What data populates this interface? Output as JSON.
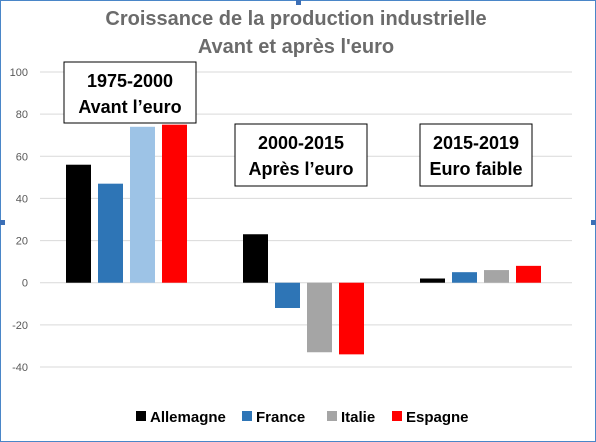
{
  "chart_data": {
    "type": "bar",
    "title": [
      "Croissance de la production industrielle",
      "Avant et après l'euro"
    ],
    "categories": [
      [
        "1975-2000",
        "Avant l’euro"
      ],
      [
        "2000-2015",
        "Après l’euro"
      ],
      [
        "2015-2019",
        "Euro faible"
      ]
    ],
    "series": [
      {
        "name": "Allemagne",
        "color": "#000000",
        "values": [
          56,
          23,
          2
        ]
      },
      {
        "name": "France",
        "color": "#2e75b6",
        "values": [
          47,
          -12,
          5
        ]
      },
      {
        "name": "Italie",
        "color_first": "#9dc3e6",
        "color": "#a5a5a5",
        "values": [
          74,
          -33,
          6
        ]
      },
      {
        "name": "Espagne",
        "color": "#ff0000",
        "values": [
          75,
          -34,
          8
        ]
      }
    ],
    "ylim": [
      -40,
      100
    ],
    "yticks": [
      -40,
      -20,
      0,
      20,
      40,
      60,
      80,
      100
    ],
    "grid": true,
    "legend_position": "bottom"
  }
}
